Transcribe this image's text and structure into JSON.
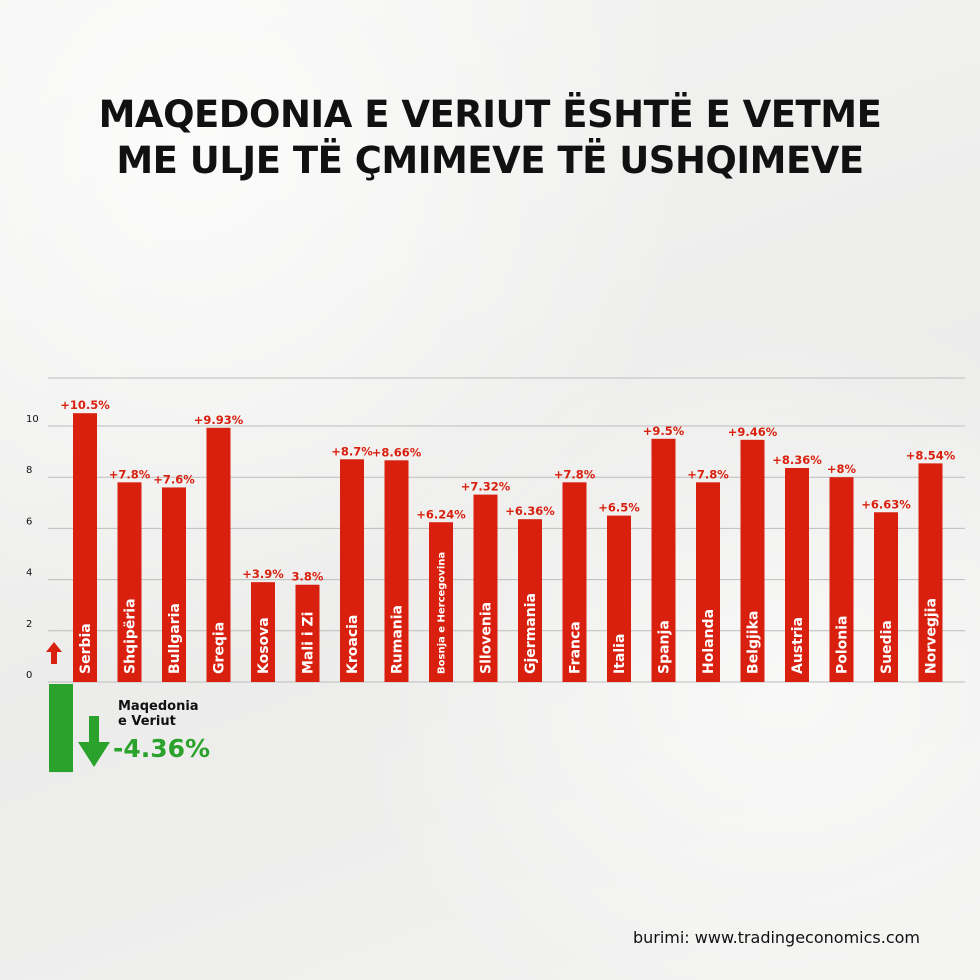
{
  "title_lines": [
    "MAQEDONIA E VERIUT ËSHTË E VETME",
    "ME ULJE TË ÇMIMEVE TË USHQIMEVE"
  ],
  "source": "burimi: www.tradingeconomics.com",
  "colors": {
    "bar": "#d9200f",
    "negative": "#2aa22b",
    "text": "#111111",
    "grid": "#bdbdbd"
  },
  "chart_data": {
    "type": "bar",
    "ylim": [
      0,
      10.5
    ],
    "yticks": [
      0,
      2,
      4,
      6,
      8,
      10
    ],
    "grid": true,
    "categories": [
      "Serbia",
      "Shqipëria",
      "Bullgaria",
      "Greqia",
      "Kosova",
      "Mali i Zi",
      "Kroacia",
      "Rumania",
      "Bosnja e Hercegovina",
      "Sllovenia",
      "Gjermania",
      "Franca",
      "Italia",
      "Spanja",
      "Holanda",
      "Belgjika",
      "Austria",
      "Polonia",
      "Suedia",
      "Norvegjia"
    ],
    "values": [
      10.5,
      7.8,
      7.6,
      9.93,
      3.9,
      3.8,
      8.7,
      8.66,
      6.24,
      7.32,
      6.36,
      7.8,
      6.5,
      9.5,
      7.8,
      9.46,
      8.36,
      8,
      6.63,
      8.54
    ],
    "value_labels": [
      "+10.5%",
      "+7.8%",
      "+7.6%",
      "+9.93%",
      "+3.9%",
      "3.8%",
      "+8.7%",
      "+8.66%",
      "+6.24%",
      "+7.32%",
      "+6.36%",
      "+7.8%",
      "+6.5%",
      "+9.5%",
      "+7.8%",
      "+9.46%",
      "+8.36%",
      "+8%",
      "+6.63%",
      "+8.54%"
    ],
    "negative": {
      "label_lines": [
        "Maqedonia",
        "e Veriut"
      ],
      "value": -4.36,
      "value_label": "-4.36%"
    }
  }
}
